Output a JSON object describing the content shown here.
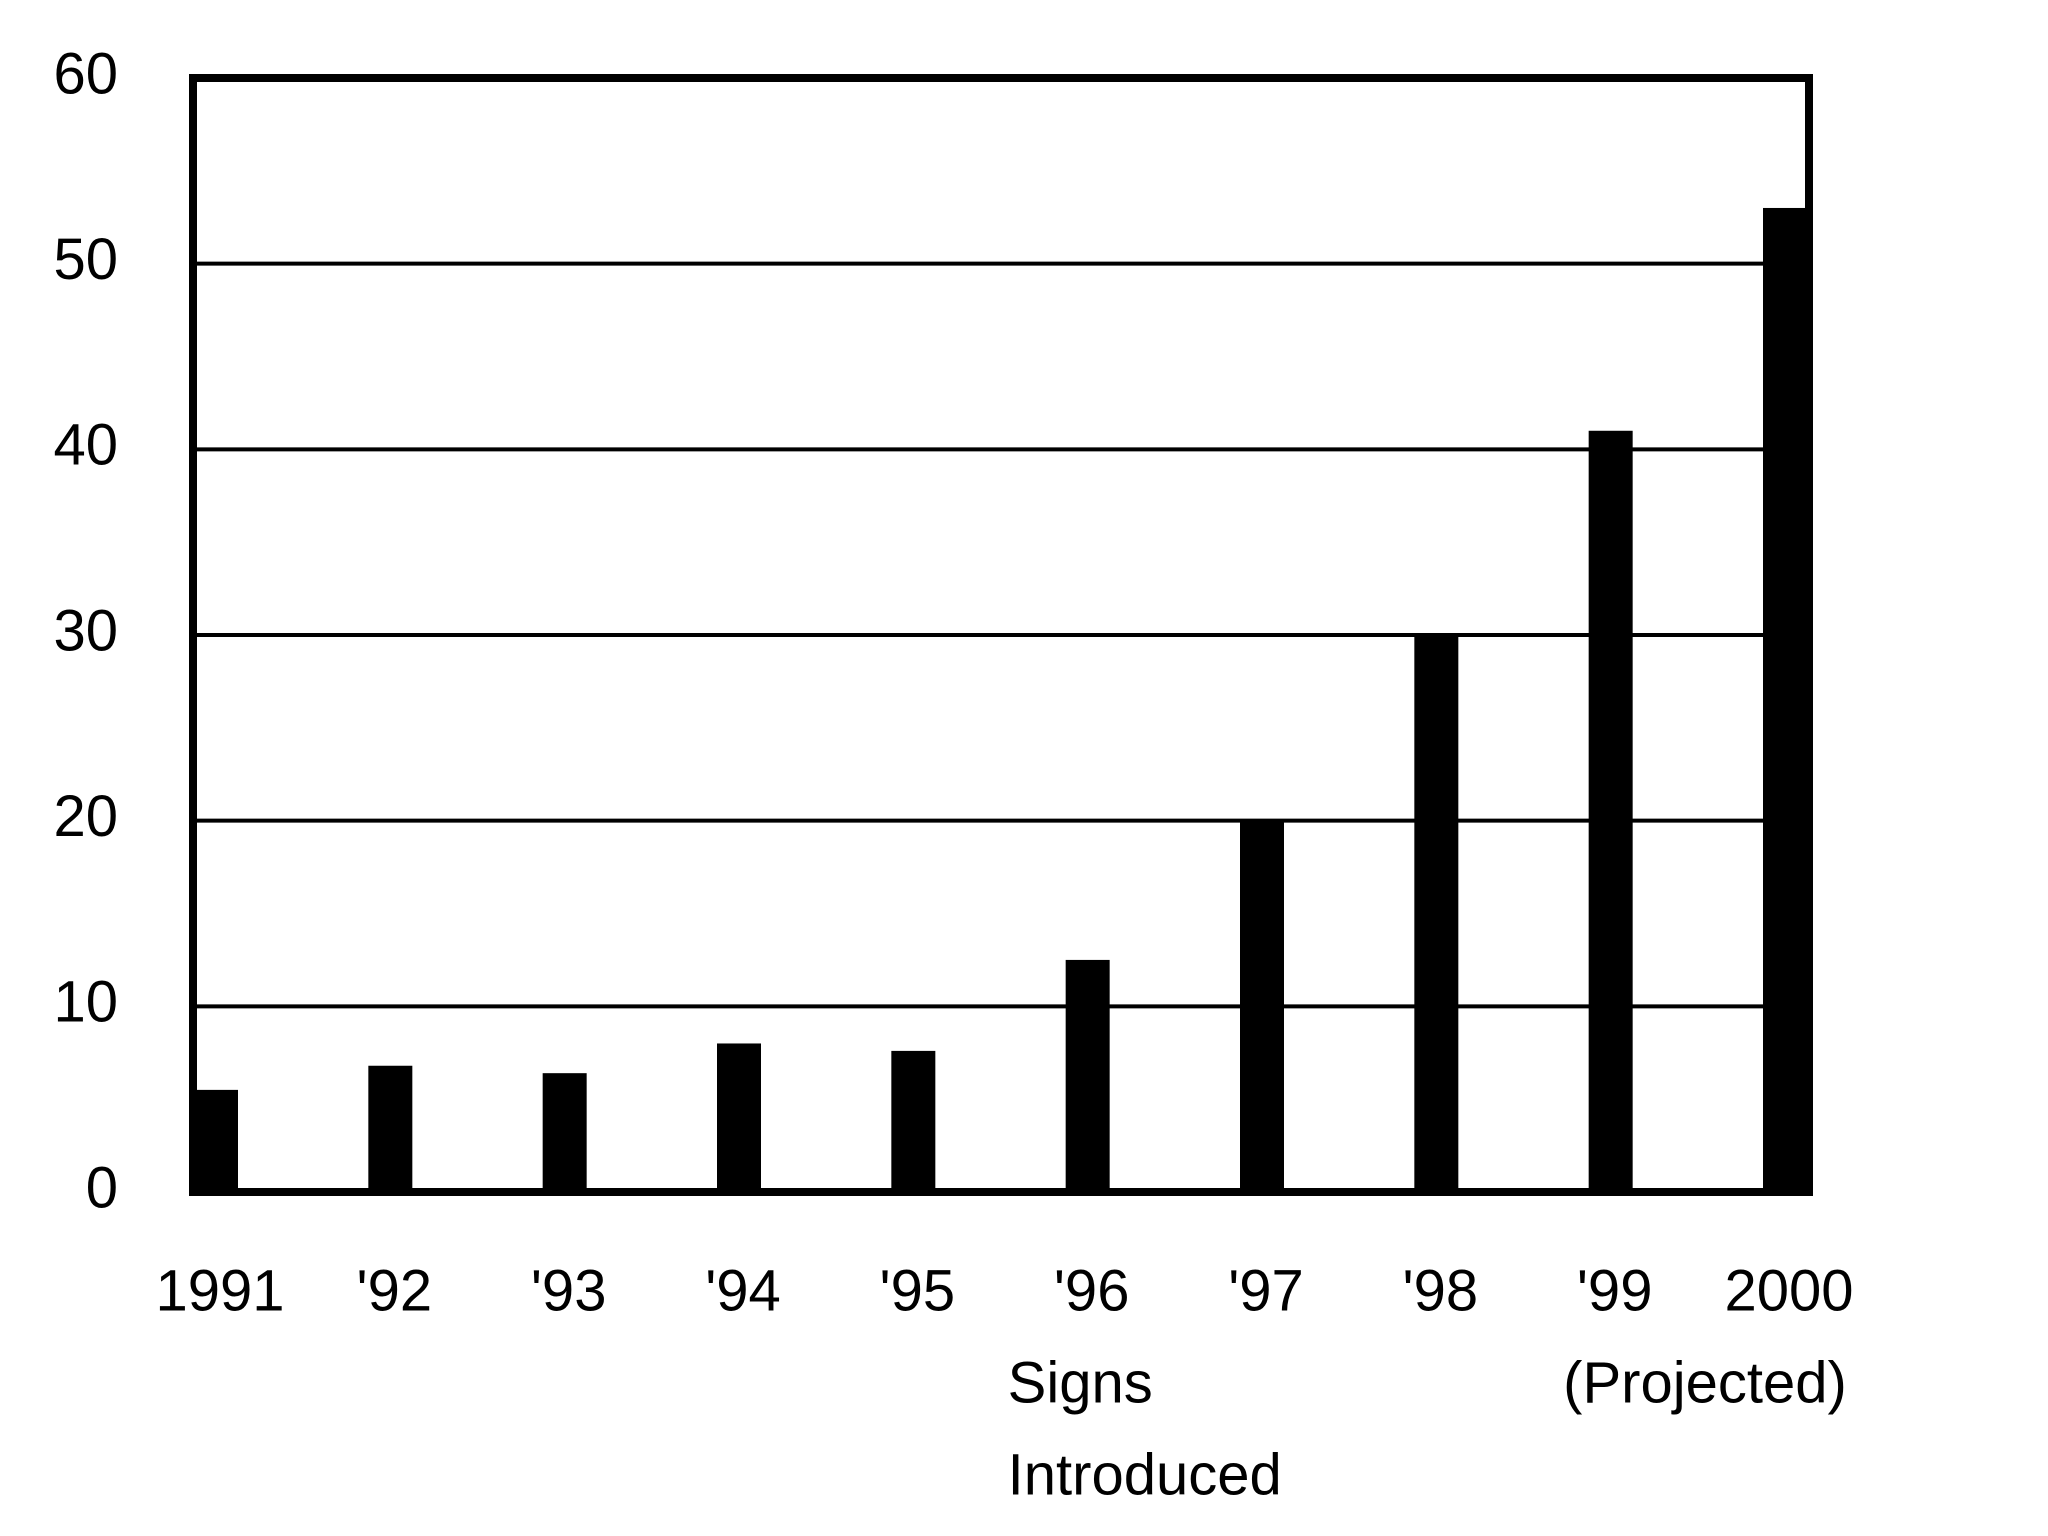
{
  "chart_data": {
    "type": "bar",
    "categories": [
      "1991",
      "'92",
      "'93",
      "'94",
      "'95",
      "'96",
      "'97",
      "'98",
      "'99",
      "2000"
    ],
    "values": [
      5.5,
      6.8,
      6.4,
      8,
      7.6,
      12.5,
      20,
      30,
      41,
      53
    ],
    "color": "#000000",
    "ylim": [
      0,
      60
    ],
    "yticks": [
      0,
      10,
      20,
      30,
      40,
      50,
      60
    ],
    "grid": true,
    "annotations": [
      {
        "category": 5,
        "lines": [
          "Signs",
          "Introduced"
        ]
      },
      {
        "category": 9,
        "lines": [
          "(Projected)"
        ]
      }
    ]
  }
}
